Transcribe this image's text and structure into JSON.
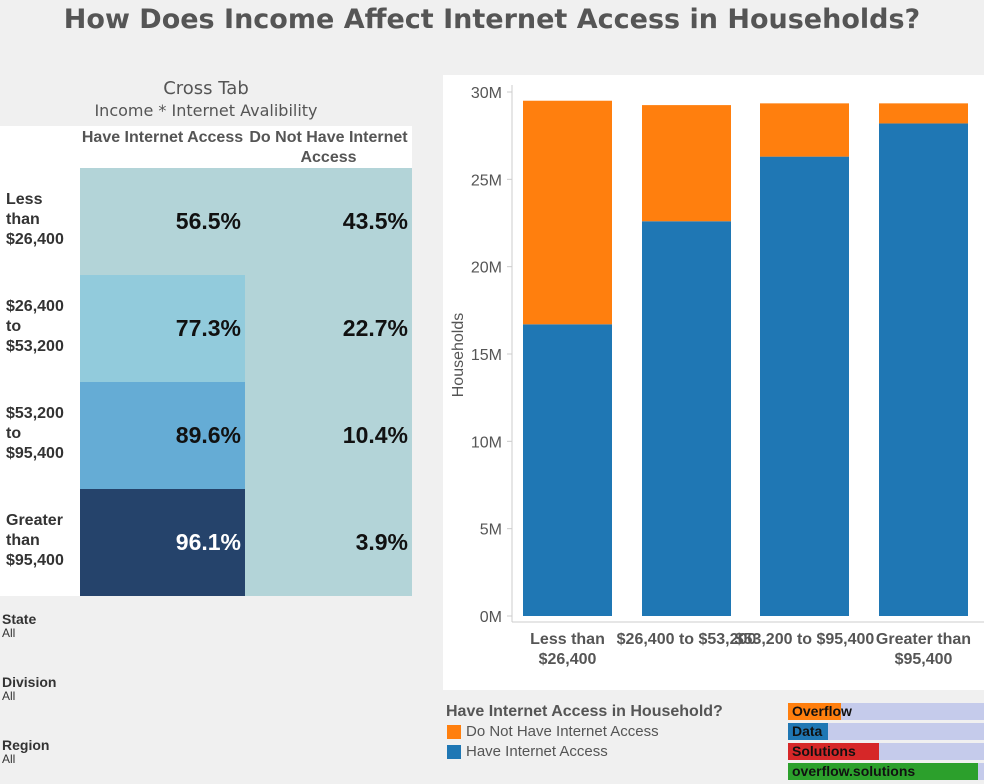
{
  "title": "How Does Income Affect Internet Access in Households?",
  "crosstab": {
    "title": "Cross Tab",
    "subtitle": "Income * Internet Avalibility",
    "col_headers": [
      "Have Internet Access",
      "Do Not Have Internet Access"
    ],
    "rows": [
      {
        "label": "Less than $26,400",
        "have": "56.5%",
        "not": "43.5%",
        "color": "#b3d4d8"
      },
      {
        "label": "$26,400 to $53,200",
        "have": "77.3%",
        "not": "22.7%",
        "color": "#92cbdc"
      },
      {
        "label": "$53,200 to $95,400",
        "have": "89.6%",
        "not": "10.4%",
        "color": "#65acd5"
      },
      {
        "label": "Greater than $95,400",
        "have": "96.1%",
        "not": "3.9%",
        "color": "#25436b"
      }
    ],
    "not_color": "#b3d4d8"
  },
  "filters": [
    {
      "label": "State",
      "value": "All"
    },
    {
      "label": "Division",
      "value": "All"
    },
    {
      "label": "Region",
      "value": "All"
    }
  ],
  "chart_data": {
    "type": "bar",
    "stacked": true,
    "ylabel": "Households",
    "ylim": [
      0,
      30000000
    ],
    "yticks": [
      "0M",
      "5M",
      "10M",
      "15M",
      "20M",
      "25M",
      "30M"
    ],
    "categories": [
      "Less than $26,400",
      "$26,400 to $53,200",
      "$53,200 to $95,400",
      "Greater than $95,400"
    ],
    "series": [
      {
        "name": "Have Internet Access",
        "color": "#1f77b4",
        "values": [
          16700000,
          22600000,
          26300000,
          28200000
        ]
      },
      {
        "name": "Do Not Have Internet Access",
        "color": "#ff7f0e",
        "values": [
          12800000,
          6650000,
          3050000,
          1150000
        ]
      }
    ],
    "legend": {
      "title": "Have Internet Access in Household?",
      "position": "bottom-left"
    }
  },
  "watermark": [
    {
      "text": "Overflow",
      "color": "#ff7f0e",
      "fill": 0.28
    },
    {
      "text": "Data",
      "color": "#1f77b4",
      "fill": 0.21
    },
    {
      "text": "Solutions",
      "color": "#d62728",
      "fill": 0.48
    },
    {
      "text": "overflow.solutions",
      "color": "#2ca02c",
      "fill": 1
    }
  ]
}
